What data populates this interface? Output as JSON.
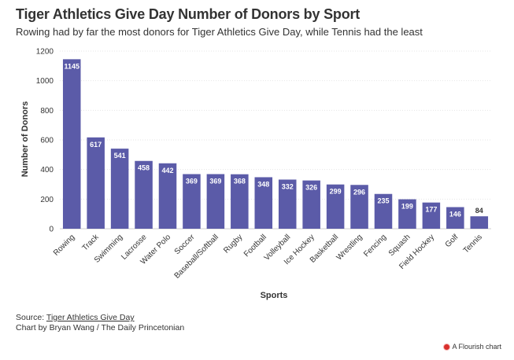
{
  "title": "Tiger Athletics Give Day Number of Donors by Sport",
  "subtitle": "Rowing had by far the most donors for Tiger Athletics Give Day, while Tennis had the least",
  "footer": {
    "source_prefix": "Source: ",
    "source_link": "Tiger Athletics Give Day",
    "credit": "Chart by Bryan Wang / The Daily Princetonian",
    "flourish": "A Flourish chart"
  },
  "colors": {
    "bar": "#5b5ba8",
    "grid": "#e6e6e6",
    "text": "#333333",
    "label": "#ffffff"
  },
  "chart_data": {
    "type": "bar",
    "title": "Tiger Athletics Give Day Number of Donors by Sport",
    "xlabel": "Sports",
    "ylabel": "Number of Donors",
    "ylim": [
      0,
      1200
    ],
    "yticks": [
      0,
      200,
      400,
      600,
      800,
      1000,
      1200
    ],
    "grid": true,
    "categories": [
      "Rowing",
      "Track",
      "Swimming",
      "Lacrosse",
      "Water Polo",
      "Soccer",
      "Baseball/Softball",
      "Rugby",
      "Football",
      "Volleyball",
      "Ice Hockey",
      "Basketball",
      "Wrestling",
      "Fencing",
      "Squash",
      "Field Hockey",
      "Golf",
      "Tennis"
    ],
    "values": [
      1145,
      617,
      541,
      458,
      442,
      369,
      369,
      368,
      348,
      332,
      326,
      299,
      296,
      235,
      199,
      177,
      146,
      84
    ]
  }
}
